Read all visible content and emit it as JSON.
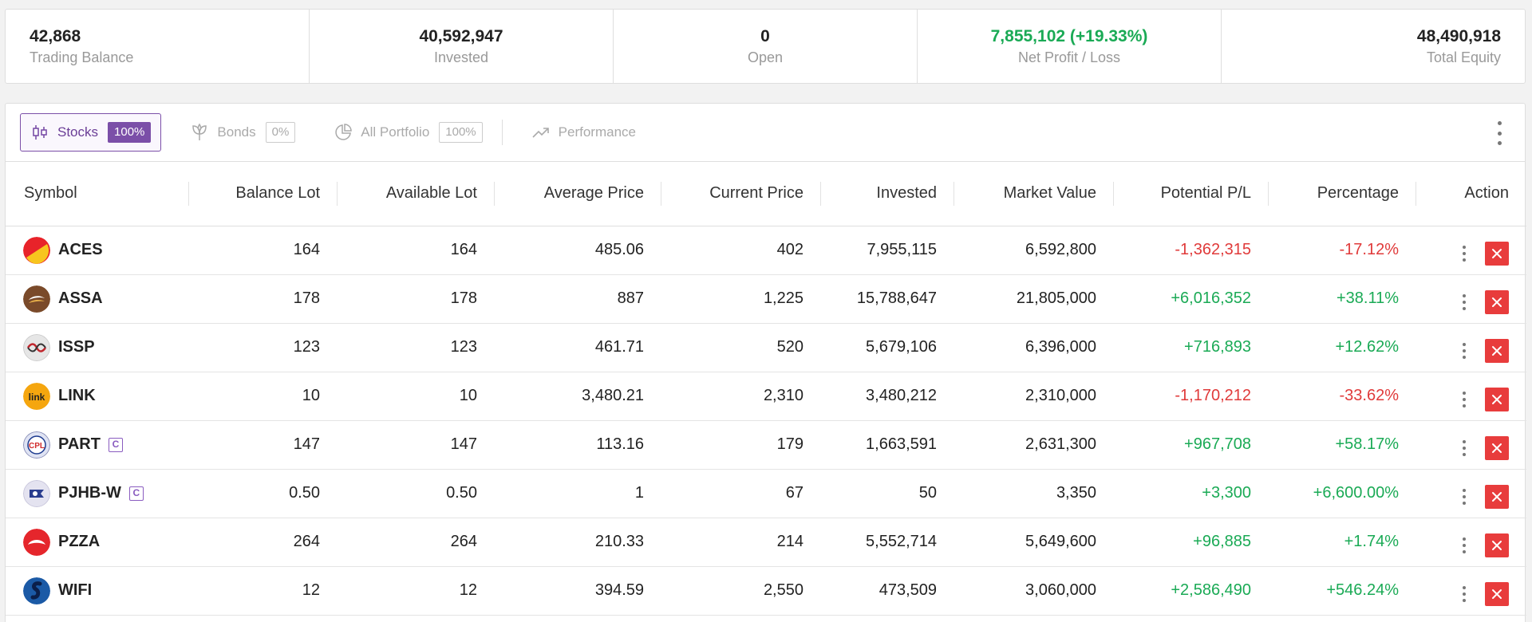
{
  "summary": [
    {
      "value": "42,868",
      "label": "Trading Balance"
    },
    {
      "value": "40,592,947",
      "label": "Invested"
    },
    {
      "value": "0",
      "label": "Open"
    },
    {
      "value": "7,855,102 (+19.33%)",
      "label": "Net Profit / Loss"
    },
    {
      "value": "48,490,918",
      "label": "Total Equity"
    }
  ],
  "tabs": [
    {
      "label": "Stocks",
      "badge": "100%",
      "icon": "candlestick-icon"
    },
    {
      "label": "Bonds",
      "badge": "0%",
      "icon": "leaf-icon"
    },
    {
      "label": "All Portfolio",
      "badge": "100%",
      "icon": "pie-chart-icon"
    },
    {
      "label": "Performance",
      "icon": "trending-up-icon"
    }
  ],
  "columns": [
    "Symbol",
    "Balance Lot",
    "Available Lot",
    "Average Price",
    "Current Price",
    "Invested",
    "Market Value",
    "Potential P/L",
    "Percentage",
    "Action"
  ],
  "rows": [
    {
      "symbol": "ACES",
      "balance": "164",
      "available": "164",
      "avg": "485.06",
      "current": "402",
      "invested": "7,955,115",
      "market": "6,592,800",
      "pl": "-1,362,315",
      "pct": "-17.12%",
      "flag": ""
    },
    {
      "symbol": "ASSA",
      "balance": "178",
      "available": "178",
      "avg": "887",
      "current": "1,225",
      "invested": "15,788,647",
      "market": "21,805,000",
      "pl": "+6,016,352",
      "pct": "+38.11%",
      "flag": ""
    },
    {
      "symbol": "ISSP",
      "balance": "123",
      "available": "123",
      "avg": "461.71",
      "current": "520",
      "invested": "5,679,106",
      "market": "6,396,000",
      "pl": "+716,893",
      "pct": "+12.62%",
      "flag": ""
    },
    {
      "symbol": "LINK",
      "balance": "10",
      "available": "10",
      "avg": "3,480.21",
      "current": "2,310",
      "invested": "3,480,212",
      "market": "2,310,000",
      "pl": "-1,170,212",
      "pct": "-33.62%",
      "flag": ""
    },
    {
      "symbol": "PART",
      "balance": "147",
      "available": "147",
      "avg": "113.16",
      "current": "179",
      "invested": "1,663,591",
      "market": "2,631,300",
      "pl": "+967,708",
      "pct": "+58.17%",
      "flag": "C"
    },
    {
      "symbol": "PJHB-W",
      "balance": "0.50",
      "available": "0.50",
      "avg": "1",
      "current": "67",
      "invested": "50",
      "market": "3,350",
      "pl": "+3,300",
      "pct": "+6,600.00%",
      "flag": "C"
    },
    {
      "symbol": "PZZA",
      "balance": "264",
      "available": "264",
      "avg": "210.33",
      "current": "214",
      "invested": "5,552,714",
      "market": "5,649,600",
      "pl": "+96,885",
      "pct": "+1.74%",
      "flag": ""
    },
    {
      "symbol": "WIFI",
      "balance": "12",
      "available": "12",
      "avg": "394.59",
      "current": "2,550",
      "invested": "473,509",
      "market": "3,060,000",
      "pl": "+2,586,490",
      "pct": "+546.24%",
      "flag": ""
    }
  ],
  "logo_text": {
    "LINK": "link",
    "PART": "CPL"
  },
  "colors": {
    "accent": "#7b4fa8",
    "positive": "#1aaa55",
    "negative": "#e03a3a",
    "delete": "#e83c3c"
  }
}
